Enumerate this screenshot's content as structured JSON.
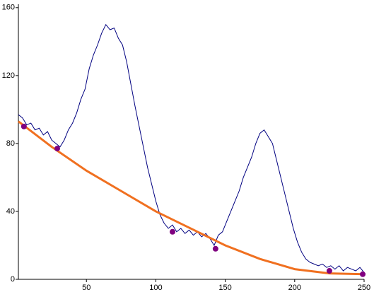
{
  "chart_data": {
    "type": "line",
    "xlim": [
      1,
      250
    ],
    "ylim": [
      0,
      162
    ],
    "xticks": [
      50,
      100,
      150,
      200,
      250
    ],
    "yticks": [
      0,
      40,
      80,
      120,
      160
    ],
    "series": [
      {
        "color": "#000080",
        "mode": "line",
        "x": [
          1,
          4,
          7,
          10,
          13,
          16,
          19,
          22,
          25,
          28,
          31,
          34,
          37,
          40,
          43,
          46,
          49,
          52,
          55,
          58,
          61,
          64,
          67,
          70,
          73,
          76,
          79,
          82,
          85,
          88,
          91,
          94,
          97,
          100,
          103,
          106,
          109,
          112,
          115,
          118,
          121,
          124,
          127,
          130,
          133,
          136,
          139,
          142,
          145,
          148,
          151,
          154,
          157,
          160,
          163,
          166,
          169,
          172,
          175,
          178,
          181,
          184,
          187,
          190,
          193,
          196,
          199,
          202,
          205,
          208,
          211,
          214,
          217,
          220,
          223,
          226,
          229,
          232,
          235,
          238,
          241,
          244,
          247,
          250
        ],
        "values": [
          97,
          95,
          91,
          92,
          88,
          89,
          85,
          87,
          82,
          80,
          78,
          82,
          88,
          92,
          98,
          106,
          112,
          124,
          132,
          138,
          145,
          150,
          147,
          148,
          142,
          138,
          128,
          115,
          102,
          90,
          78,
          66,
          56,
          46,
          38,
          33,
          30,
          32,
          28,
          30,
          27,
          29,
          26,
          28,
          25,
          27,
          24,
          20,
          26,
          28,
          34,
          40,
          46,
          52,
          60,
          66,
          72,
          80,
          86,
          88,
          84,
          80,
          70,
          60,
          50,
          40,
          30,
          22,
          16,
          12,
          10,
          9,
          8,
          9,
          7,
          8,
          6,
          8,
          5,
          7,
          6,
          5,
          7,
          4
        ]
      },
      {
        "color": "#f07020",
        "mode": "line",
        "x": [
          1,
          25,
          50,
          75,
          100,
          125,
          150,
          175,
          200,
          225,
          250
        ],
        "values": [
          93,
          78,
          64,
          52,
          40,
          30,
          20,
          12,
          6,
          3.5,
          3
        ]
      },
      {
        "color": "#800080",
        "mode": "markers",
        "x": [
          5,
          29,
          112,
          143,
          225,
          249
        ],
        "values": [
          90,
          77,
          28,
          18,
          5,
          3
        ]
      }
    ]
  }
}
